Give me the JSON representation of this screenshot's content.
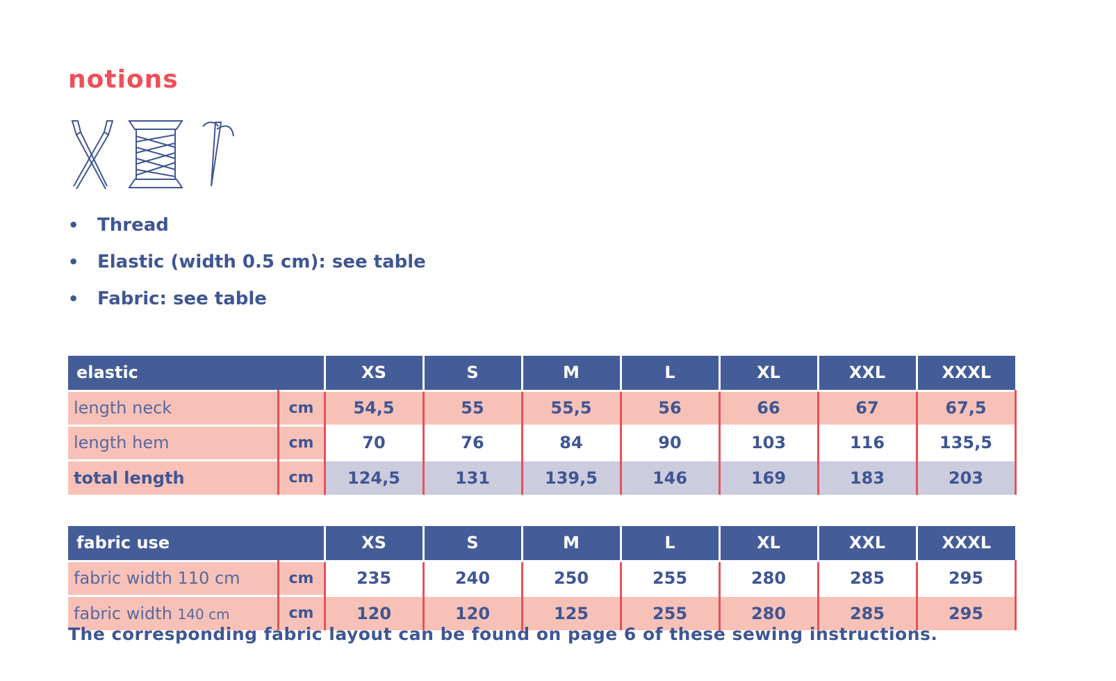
{
  "section_title": "notions",
  "icons": [
    "scissors-icon",
    "thread-spool-icon",
    "needle-icon"
  ],
  "notions_list": [
    "Thread",
    "Elastic (width 0.5 cm): see table",
    "Fabric: see table"
  ],
  "sizes": [
    "XS",
    "S",
    "M",
    "L",
    "XL",
    "XXL",
    "XXXL"
  ],
  "elastic_table": {
    "header": "elastic",
    "rows": [
      {
        "label": "length neck",
        "unit": "cm",
        "values": [
          "54,5",
          "55",
          "55,5",
          "56",
          "66",
          "67",
          "67,5"
        ]
      },
      {
        "label": "length hem",
        "unit": "cm",
        "values": [
          "70",
          "76",
          "84",
          "90",
          "103",
          "116",
          "135,5"
        ]
      },
      {
        "label": "total length",
        "unit": "cm",
        "values": [
          "124,5",
          "131",
          "139,5",
          "146",
          "169",
          "183",
          "203"
        ]
      }
    ]
  },
  "fabric_table": {
    "header": "fabric use",
    "rows": [
      {
        "label": "fabric width 110 cm",
        "unit": "cm",
        "values": [
          "235",
          "240",
          "250",
          "255",
          "280",
          "285",
          "295"
        ]
      },
      {
        "label_main": "fabric width ",
        "label_small": "140 cm",
        "unit": "cm",
        "values": [
          "120",
          "120",
          "125",
          "255",
          "280",
          "285",
          "295"
        ]
      }
    ]
  },
  "footer": "The corresponding fabric layout can be found on page 6 of these sewing instructions.",
  "colors": {
    "accent_red": "#ee5058",
    "navy": "#445c97",
    "pink": "#f8c1b8",
    "lavender": "#ccccdf"
  }
}
